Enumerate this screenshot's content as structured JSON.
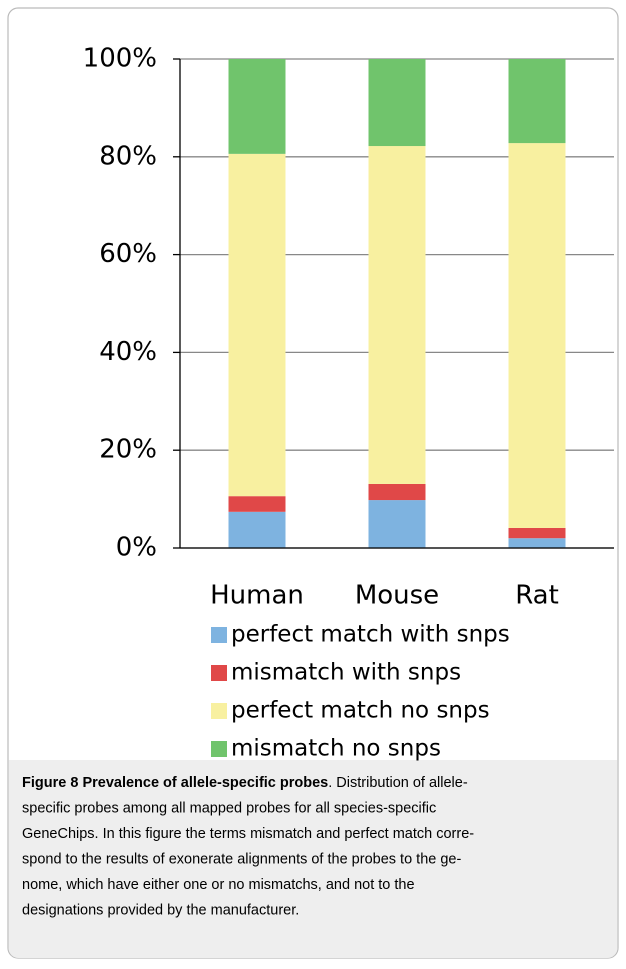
{
  "chart_data": {
    "type": "stacked_bar",
    "categories": [
      "Human",
      "Mouse",
      "Rat"
    ],
    "series": [
      {
        "name": "perfect match with snps",
        "color": "#7eb3e0",
        "values": [
          7.4,
          9.8,
          2.0
        ]
      },
      {
        "name": "mismatch with snps",
        "color": "#e04848",
        "values": [
          3.2,
          3.3,
          2.1
        ]
      },
      {
        "name": "perfect match no snps",
        "color": "#f8f0a0",
        "values": [
          70.0,
          69.1,
          78.7
        ]
      },
      {
        "name": "mismatch no snps",
        "color": "#70c46c",
        "values": [
          19.4,
          17.8,
          17.2
        ]
      }
    ],
    "ylim": [
      0,
      100
    ],
    "yticks": [
      {
        "value": 0,
        "label": "0%"
      },
      {
        "value": 20,
        "label": "20%"
      },
      {
        "value": 40,
        "label": "40%"
      },
      {
        "value": 60,
        "label": "60%"
      },
      {
        "value": 80,
        "label": "80%"
      },
      {
        "value": 100,
        "label": "100%"
      }
    ],
    "grid": true
  },
  "caption": {
    "label": "Figure 8",
    "title": "Prevalence of allele-specific probes",
    "lines": [
      ". Distribution of allele-",
      "specific probes among all mapped probes for all species-specific",
      "GeneChips. In this figure the terms mismatch and perfect match corre-",
      "spond to the results of exonerate alignments of the probes to the ge-",
      "nome, which have either one or no mismatchs, and not to the",
      "designations provided by the manufacturer."
    ]
  }
}
